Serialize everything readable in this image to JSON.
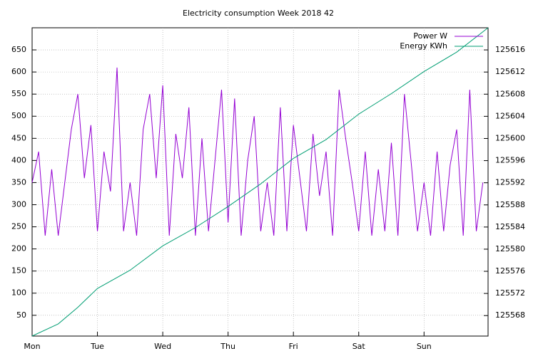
{
  "chart_data": {
    "type": "line",
    "title": "Electricity consumption Week 2018 42",
    "grid": true,
    "legend": "top-right",
    "xlim": [
      0,
      6.98
    ],
    "xticks": [
      {
        "value": 0,
        "label": "Mon"
      },
      {
        "value": 1,
        "label": "Tue"
      },
      {
        "value": 2,
        "label": "Wed"
      },
      {
        "value": 3,
        "label": "Thu"
      },
      {
        "value": 4,
        "label": "Fri"
      },
      {
        "value": 5,
        "label": "Sat"
      },
      {
        "value": 6,
        "label": "Sun"
      }
    ],
    "ylim": [
      3,
      700
    ],
    "yticks": [
      50,
      100,
      150,
      200,
      250,
      300,
      350,
      400,
      450,
      500,
      550,
      600,
      650
    ],
    "y2lim": [
      125564.3,
      125620
    ],
    "y2ticks": [
      125568,
      125572,
      125576,
      125580,
      125584,
      125588,
      125592,
      125596,
      125600,
      125604,
      125608,
      125612,
      125616
    ],
    "series": [
      {
        "name": "Power W",
        "color": "#9400d3",
        "axis": "y",
        "x": [
          0,
          0.1,
          0.2,
          0.3,
          0.4,
          0.5,
          0.6,
          0.7,
          0.8,
          0.9,
          1,
          1.1,
          1.2,
          1.3,
          1.4,
          1.5,
          1.6,
          1.7,
          1.8,
          1.9,
          2,
          2.1,
          2.2,
          2.3,
          2.4,
          2.5,
          2.6,
          2.7,
          2.8,
          2.9,
          3,
          3.1,
          3.2,
          3.3,
          3.4,
          3.5,
          3.6,
          3.7,
          3.8,
          3.9,
          4,
          4.1,
          4.2,
          4.3,
          4.4,
          4.5,
          4.6,
          4.7,
          4.8,
          4.9,
          5,
          5.1,
          5.2,
          5.3,
          5.4,
          5.5,
          5.6,
          5.7,
          5.8,
          5.9,
          6,
          6.1,
          6.2,
          6.3,
          6.4,
          6.5,
          6.6,
          6.7,
          6.8,
          6.9
        ],
        "values": [
          350,
          420,
          230,
          380,
          230,
          350,
          470,
          550,
          360,
          480,
          240,
          420,
          330,
          610,
          240,
          350,
          230,
          470,
          550,
          360,
          570,
          230,
          460,
          360,
          520,
          230,
          450,
          240,
          400,
          560,
          260,
          540,
          230,
          400,
          500,
          240,
          350,
          230,
          520,
          240,
          480,
          360,
          240,
          460,
          320,
          420,
          230,
          560,
          450,
          350,
          240,
          420,
          230,
          380,
          240,
          440,
          230,
          550,
          400,
          240,
          350,
          230,
          420,
          240,
          390,
          470,
          230,
          560,
          240,
          350
        ]
      },
      {
        "name": "Energy KWh",
        "color": "#009e73",
        "axis": "y2",
        "x": [
          0,
          0.4,
          0.7,
          1,
          1.5,
          2,
          2.5,
          3,
          3.5,
          4,
          4.5,
          5,
          5.5,
          6,
          6.5,
          6.98
        ],
        "values": [
          125564.3,
          125566.5,
          125569.5,
          125572.9,
          125576.2,
          125580.6,
          125583.9,
          125587.7,
          125591.8,
          125596.4,
          125599.8,
          125604.4,
          125608.1,
          125612.1,
          125615.6,
          125620
        ]
      }
    ]
  }
}
